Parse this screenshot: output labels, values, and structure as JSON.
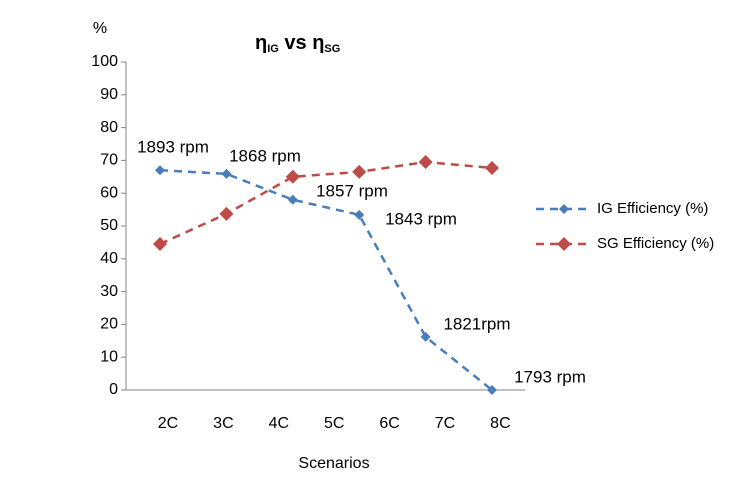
{
  "chart_data": {
    "type": "line",
    "title": [
      {
        "text": "η"
      },
      {
        "text": "IG",
        "sub": true
      },
      {
        "text": " vs "
      },
      {
        "text": "η"
      },
      {
        "text": "SG",
        "sub": true
      }
    ],
    "y_label": "%",
    "x_label": "Scenarios",
    "categories": [
      "2C",
      "3C",
      "4C",
      "5C",
      "6C",
      "7C",
      "8C"
    ],
    "series": [
      {
        "name": "IG Efficiency (%)",
        "color": "#4a7ebb",
        "values": [
          67,
          65.9,
          58,
          53.4,
          16.2,
          0,
          null
        ]
      },
      {
        "name": "SG Efficiency (%)",
        "color": "#be4b48",
        "values": [
          44.5,
          53.7,
          65,
          66.5,
          69.5,
          67.7,
          null
        ]
      }
    ],
    "annotations": [
      "1893 rpm",
      "1868 rpm",
      "1857 rpm",
      "1843 rpm",
      "1821rpm",
      "1793 rpm"
    ],
    "ylim": [
      0,
      100
    ],
    "yticks": [
      0,
      10,
      20,
      30,
      40,
      50,
      60,
      70,
      80,
      90,
      100
    ],
    "legend": "right",
    "grid": false
  }
}
